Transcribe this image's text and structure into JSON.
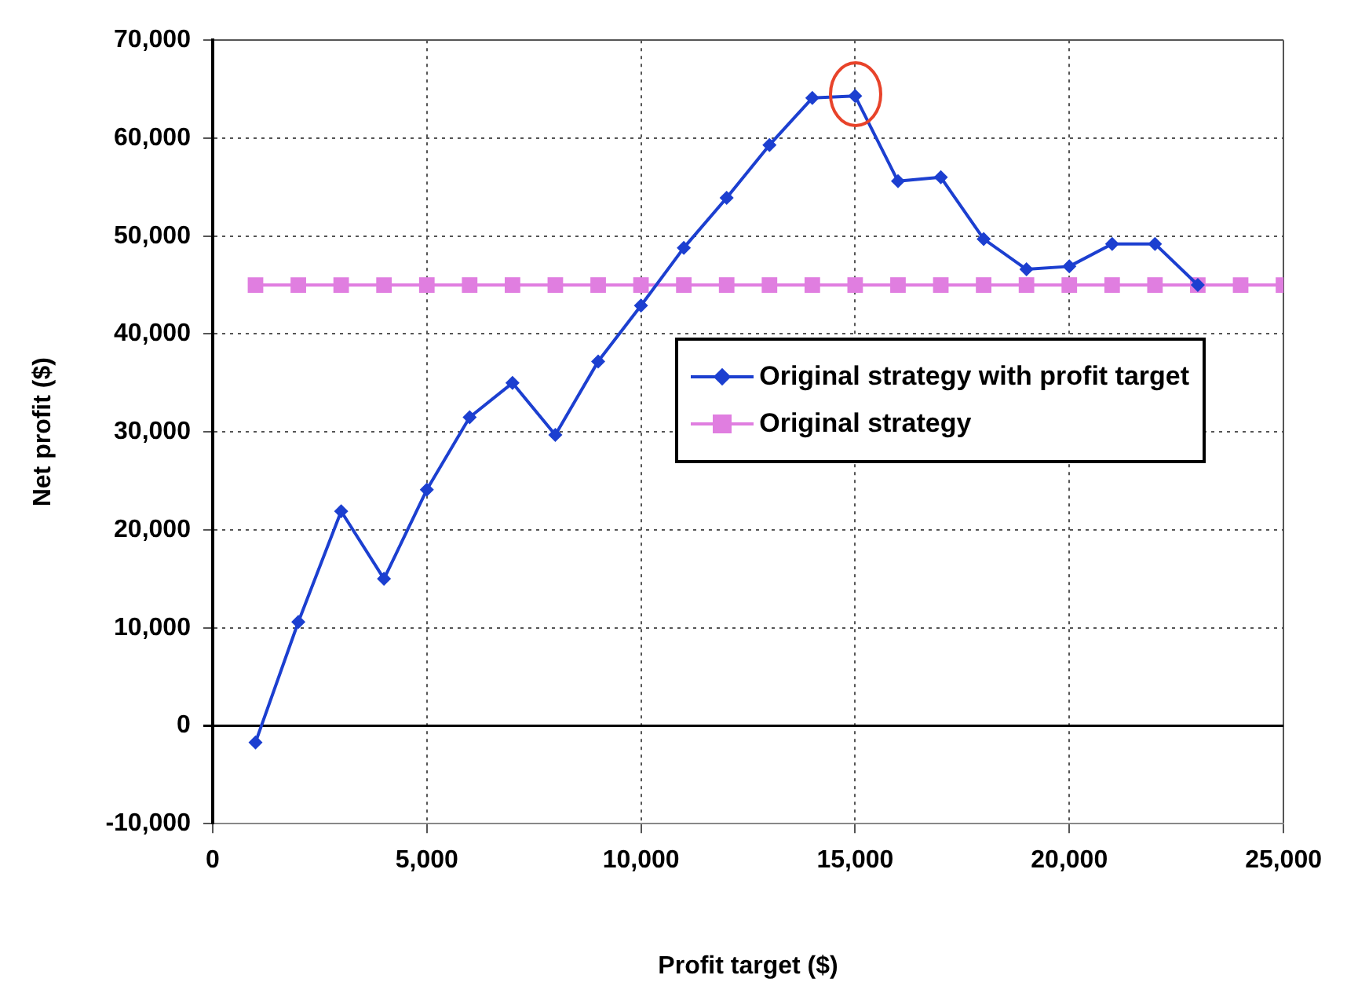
{
  "chart_data": {
    "type": "line",
    "xlabel": "Profit target ($)",
    "ylabel": "Net profit ($)",
    "xlim": [
      0,
      25000
    ],
    "xticks": [
      {
        "value": 0,
        "label": "0"
      },
      {
        "value": 5000,
        "label": "5,000"
      },
      {
        "value": 10000,
        "label": "10,000"
      },
      {
        "value": 15000,
        "label": "15,000"
      },
      {
        "value": 20000,
        "label": "20,000"
      },
      {
        "value": 25000,
        "label": "25,000"
      }
    ],
    "ylim": [
      -10000,
      70000
    ],
    "yticks": [
      {
        "value": -10000,
        "label": "-10,000"
      },
      {
        "value": 0,
        "label": "0"
      },
      {
        "value": 10000,
        "label": "10,000"
      },
      {
        "value": 20000,
        "label": "20,000"
      },
      {
        "value": 30000,
        "label": "30,000"
      },
      {
        "value": 40000,
        "label": "40,000"
      },
      {
        "value": 50000,
        "label": "50,000"
      },
      {
        "value": 60000,
        "label": "60,000"
      },
      {
        "value": 70000,
        "label": "70,000"
      }
    ],
    "grid": true,
    "legend": "right",
    "line_style": "solid",
    "series": [
      {
        "name": "Original strategy with profit target",
        "color": "#1c3fd0",
        "marker": "diamond",
        "x": [
          1000,
          2000,
          3000,
          4000,
          5000,
          6000,
          7000,
          8000,
          9000,
          10000,
          11000,
          12000,
          13000,
          14000,
          15000,
          16000,
          17000,
          18000,
          19000,
          20000,
          21000,
          22000,
          23000
        ],
        "values": [
          -1700,
          10600,
          21900,
          15000,
          24100,
          31500,
          35000,
          29700,
          37200,
          42900,
          48800,
          53900,
          59300,
          64100,
          64300,
          55600,
          56000,
          49700,
          46600,
          46900,
          49200,
          49200,
          45000
        ]
      },
      {
        "name": "Original strategy",
        "color": "#e07ee0",
        "marker": "square",
        "x": [
          1000,
          2000,
          3000,
          4000,
          5000,
          6000,
          7000,
          8000,
          9000,
          10000,
          11000,
          12000,
          13000,
          14000,
          15000,
          16000,
          17000,
          18000,
          19000,
          20000,
          21000,
          22000,
          23000,
          24000,
          25000
        ],
        "values": [
          45000,
          45000,
          45000,
          45000,
          45000,
          45000,
          45000,
          45000,
          45000,
          45000,
          45000,
          45000,
          45000,
          45000,
          45000,
          45000,
          45000,
          45000,
          45000,
          45000,
          45000,
          45000,
          45000,
          45000,
          45000
        ]
      }
    ]
  }
}
